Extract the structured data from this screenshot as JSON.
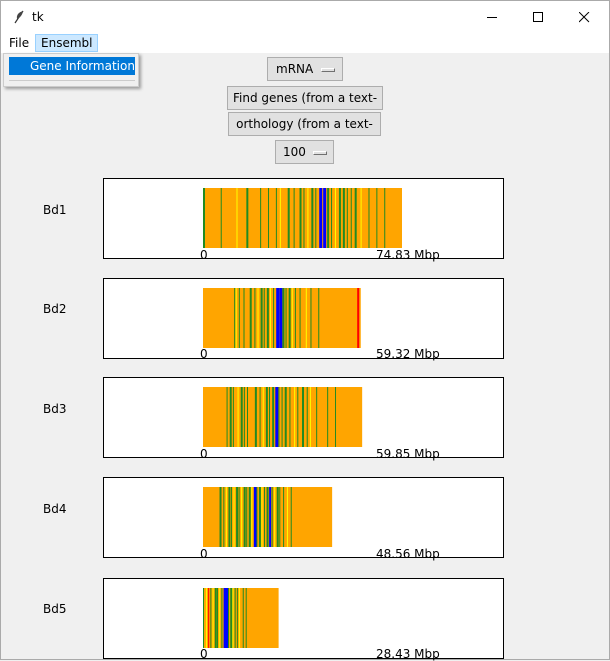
{
  "window": {
    "title": "tk",
    "app_icon": "feather-icon"
  },
  "menubar": {
    "file": "File",
    "ensembl": "Ensembl"
  },
  "ensembl_menu": {
    "items": [
      "Gene Information"
    ]
  },
  "controls": {
    "sequence_type": "mRNA",
    "find_genes": "Find genes (from a text-file)",
    "orthology": "orthology (from a text-file)",
    "count": "100"
  },
  "colors": {
    "background_band": "#ffa500",
    "green": "#228b22",
    "blue": "#0000ff",
    "yellow": "#ffff00",
    "red": "#ff0000"
  },
  "chromosomes": [
    {
      "name": "Bd1",
      "start_label": "0",
      "end_label": "74.83 Mbp",
      "length_mbp": 74.83
    },
    {
      "name": "Bd2",
      "start_label": "0",
      "end_label": "59.32 Mbp",
      "length_mbp": 59.32
    },
    {
      "name": "Bd3",
      "start_label": "0",
      "end_label": "59.85 Mbp",
      "length_mbp": 59.85
    },
    {
      "name": "Bd4",
      "start_label": "0",
      "end_label": "48.56 Mbp",
      "length_mbp": 48.56
    },
    {
      "name": "Bd5",
      "start_label": "0",
      "end_label": "28.43 Mbp",
      "length_mbp": 28.43
    }
  ]
}
